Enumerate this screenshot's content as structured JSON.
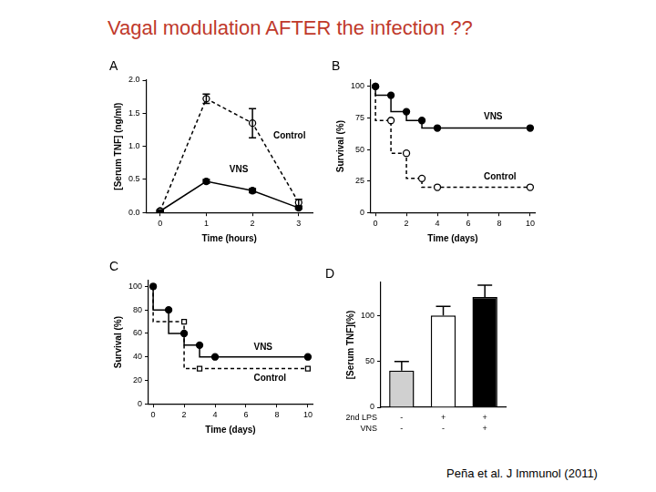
{
  "title": "Vagal modulation AFTER the infection ??",
  "citation": "Peña et al. J Immunol (2011)",
  "chart_data": [
    {
      "panel": "A",
      "type": "line",
      "x_label": "Time (hours)",
      "y_label": "[Serum TNF] (ng/ml)",
      "xlim": [
        -0.3,
        3.3
      ],
      "xticks": [
        0,
        1,
        2,
        3
      ],
      "ylim": [
        0,
        2
      ],
      "yticks": [
        {
          "value": 0,
          "label": "0.0"
        },
        {
          "value": 0.5,
          "label": "0.5"
        },
        {
          "value": 1,
          "label": "1.0"
        },
        {
          "value": 1.5,
          "label": "1.5"
        },
        {
          "value": 2,
          "label": "2.0"
        }
      ],
      "grid": false,
      "x": [
        0,
        1,
        2,
        3
      ],
      "series": [
        {
          "name": "Control",
          "color": "#000000",
          "line_style": "dashed",
          "marker": "open_circle",
          "values": [
            0.02,
            1.72,
            1.35,
            0.15
          ],
          "errors": [
            0.02,
            0.07,
            0.22,
            0.05
          ],
          "label_position": [
            2.45,
            1.15
          ]
        },
        {
          "name": "VNS",
          "color": "#000000",
          "line_style": "solid",
          "marker": "filled_circle",
          "values": [
            0.02,
            0.47,
            0.33,
            0.07
          ],
          "errors": [
            0.01,
            0.03,
            0.03,
            0.02
          ],
          "label_position": [
            1.5,
            0.64
          ]
        }
      ]
    },
    {
      "panel": "B",
      "type": "step",
      "x_label": "Time (days)",
      "y_label": "Survival (%)",
      "xlim": [
        -0.3,
        10.3
      ],
      "xticks": [
        0,
        2,
        4,
        6,
        8,
        10
      ],
      "ylim": [
        0,
        105
      ],
      "yticks": [
        0,
        25,
        50,
        75,
        100
      ],
      "grid": false,
      "series": [
        {
          "name": "VNS",
          "color": "#000000",
          "line_style": "solid",
          "marker": "filled_circle",
          "x": [
            0,
            1,
            2,
            3,
            4,
            10
          ],
          "values": [
            100,
            93,
            80,
            73,
            67,
            67
          ],
          "label_position": [
            7,
            76
          ]
        },
        {
          "name": "Control",
          "color": "#000000",
          "line_style": "dashed",
          "marker": "open_circle",
          "x": [
            0,
            1,
            2,
            3,
            4,
            10
          ],
          "values": [
            100,
            73,
            47,
            27,
            20,
            20
          ],
          "label_position": [
            7,
            28
          ]
        }
      ]
    },
    {
      "panel": "C",
      "type": "step",
      "x_label": "Time (days)",
      "y_label": "Survival (%)",
      "xlim": [
        -0.3,
        10.3
      ],
      "xticks": [
        0,
        2,
        4,
        6,
        8,
        10
      ],
      "ylim": [
        0,
        105
      ],
      "yticks": [
        0,
        20,
        40,
        60,
        80,
        100
      ],
      "grid": false,
      "series": [
        {
          "name": "VNS",
          "color": "#000000",
          "line_style": "solid",
          "marker": "filled_circle",
          "x": [
            0,
            1,
            2,
            3,
            4,
            10
          ],
          "values": [
            100,
            80,
            60,
            50,
            40,
            40
          ],
          "label_position": [
            6.5,
            48
          ]
        },
        {
          "name": "Control",
          "color": "#000000",
          "line_style": "dashed",
          "marker": "open_square",
          "x": [
            0,
            2,
            3,
            10
          ],
          "values": [
            100,
            70,
            30,
            30
          ],
          "label_position": [
            6.5,
            22
          ]
        }
      ]
    },
    {
      "panel": "D",
      "type": "bar",
      "y_label": "[Serum TNF](%)",
      "categories": [
        null,
        null,
        null
      ],
      "values": [
        40,
        100,
        120
      ],
      "errors": [
        10,
        10,
        13
      ],
      "colors": [
        "#d0d0d0",
        "#ffffff",
        "#000000"
      ],
      "ylim": [
        0,
        136
      ],
      "yticks": [
        0,
        50,
        100
      ],
      "grid": false,
      "conditions": [
        {
          "label": "2nd LPS",
          "values": [
            "-",
            "+",
            "+"
          ]
        },
        {
          "label": "VNS",
          "values": [
            "-",
            "-",
            "+"
          ]
        }
      ]
    }
  ]
}
